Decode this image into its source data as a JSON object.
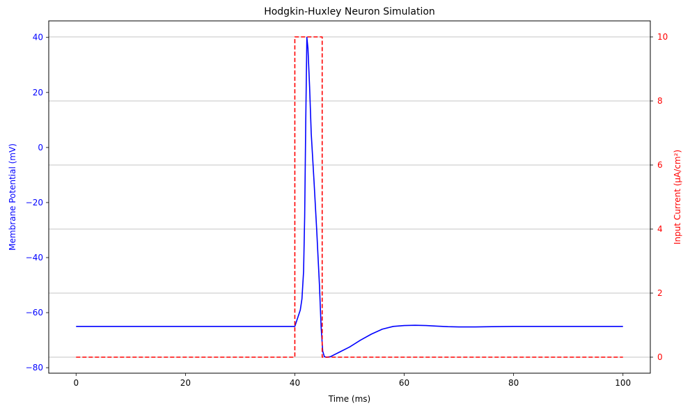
{
  "chart_data": {
    "type": "line",
    "title": "Hodgkin-Huxley Neuron Simulation",
    "xlabel": "Time (ms)",
    "ylabel": "Membrane Potential (mV)",
    "y2label": "Input Current (μA/cm²)",
    "xlim": [
      -5,
      105
    ],
    "ylim": [
      -82,
      46
    ],
    "y2lim": [
      -0.5,
      10.5
    ],
    "xticks": [
      0,
      20,
      40,
      60,
      80,
      100
    ],
    "xtick_labels": [
      "0",
      "20",
      "40",
      "60",
      "80",
      "100"
    ],
    "yticks": [
      -80,
      -60,
      -40,
      -20,
      0,
      20,
      40
    ],
    "ytick_labels": [
      "−80",
      "−60",
      "−40",
      "−20",
      "0",
      "20",
      "40"
    ],
    "y2ticks": [
      0,
      2,
      4,
      6,
      8,
      10
    ],
    "y2tick_labels": [
      "0",
      "2",
      "4",
      "6",
      "8",
      "10"
    ],
    "grid": "horizontal lines at right-axis ticks",
    "series": [
      {
        "axis": "left",
        "color": "#0000ff",
        "style": "solid",
        "x": [
          0,
          40,
          40.5,
          41,
          41.3,
          41.6,
          41.8,
          42,
          42.2,
          42.4,
          42.7,
          43,
          43.5,
          44,
          44.5,
          44.8,
          45.1,
          45.4,
          45.8,
          46.5,
          48,
          50,
          52,
          54,
          56,
          58,
          60,
          62,
          64,
          66,
          68,
          70,
          73,
          76,
          80,
          85,
          90,
          95,
          100
        ],
        "values": [
          -65,
          -65,
          -62,
          -59,
          -55,
          -45,
          -25,
          10,
          40,
          36,
          22,
          5,
          -12,
          -30,
          -50,
          -65,
          -74,
          -76,
          -76.2,
          -76,
          -74.5,
          -72.5,
          -70,
          -67.8,
          -66,
          -65,
          -64.7,
          -64.6,
          -64.7,
          -64.9,
          -65.1,
          -65.2,
          -65.2,
          -65.1,
          -65,
          -65,
          -65,
          -65,
          -65
        ]
      },
      {
        "axis": "right",
        "color": "#ff0000",
        "style": "dashed",
        "x": [
          0,
          40,
          40,
          45,
          45,
          100
        ],
        "values": [
          0,
          0,
          10,
          10,
          0,
          0
        ]
      }
    ],
    "colors": {
      "left_axis": "#0000ff",
      "right_axis": "#ff0000",
      "grid": "#b0b0b0",
      "frame": "#000000"
    }
  }
}
